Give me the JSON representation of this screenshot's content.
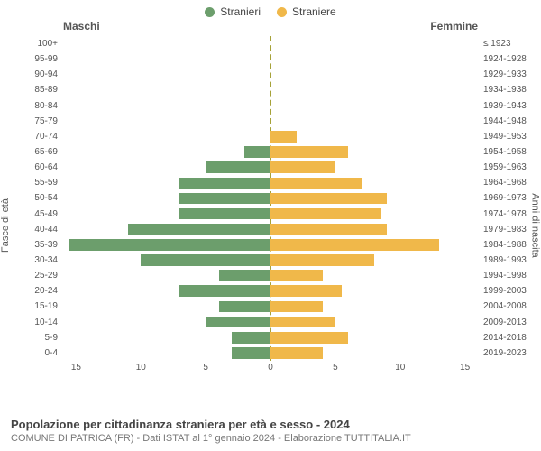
{
  "legend": {
    "male": {
      "label": "Stranieri",
      "color": "#6c9e6c"
    },
    "female": {
      "label": "Straniere",
      "color": "#f0b84a"
    }
  },
  "titles": {
    "left": "Maschi",
    "right": "Femmine"
  },
  "ylabels": {
    "left": "Fasce di età",
    "right": "Anni di nascita"
  },
  "chart": {
    "type": "population-pyramid",
    "background_color": "#ffffff",
    "centerline_color": "#a6a238",
    "xlim": 16,
    "xticks_left": [
      15,
      10,
      5,
      0
    ],
    "xticks_right": [
      5,
      10,
      15
    ],
    "rows": [
      {
        "age": "100+",
        "birth": "≤ 1923",
        "m": 0,
        "f": 0
      },
      {
        "age": "95-99",
        "birth": "1924-1928",
        "m": 0,
        "f": 0
      },
      {
        "age": "90-94",
        "birth": "1929-1933",
        "m": 0,
        "f": 0
      },
      {
        "age": "85-89",
        "birth": "1934-1938",
        "m": 0,
        "f": 0
      },
      {
        "age": "80-84",
        "birth": "1939-1943",
        "m": 0,
        "f": 0
      },
      {
        "age": "75-79",
        "birth": "1944-1948",
        "m": 0,
        "f": 0
      },
      {
        "age": "70-74",
        "birth": "1949-1953",
        "m": 0,
        "f": 2
      },
      {
        "age": "65-69",
        "birth": "1954-1958",
        "m": 2,
        "f": 6
      },
      {
        "age": "60-64",
        "birth": "1959-1963",
        "m": 5,
        "f": 5
      },
      {
        "age": "55-59",
        "birth": "1964-1968",
        "m": 7,
        "f": 7
      },
      {
        "age": "50-54",
        "birth": "1969-1973",
        "m": 7,
        "f": 9
      },
      {
        "age": "45-49",
        "birth": "1974-1978",
        "m": 7,
        "f": 8.5
      },
      {
        "age": "40-44",
        "birth": "1979-1983",
        "m": 11,
        "f": 9
      },
      {
        "age": "35-39",
        "birth": "1984-1988",
        "m": 15.5,
        "f": 13
      },
      {
        "age": "30-34",
        "birth": "1989-1993",
        "m": 10,
        "f": 8
      },
      {
        "age": "25-29",
        "birth": "1994-1998",
        "m": 4,
        "f": 4
      },
      {
        "age": "20-24",
        "birth": "1999-2003",
        "m": 7,
        "f": 5.5
      },
      {
        "age": "15-19",
        "birth": "2004-2008",
        "m": 4,
        "f": 4
      },
      {
        "age": "10-14",
        "birth": "2009-2013",
        "m": 5,
        "f": 5
      },
      {
        "age": "5-9",
        "birth": "2014-2018",
        "m": 3,
        "f": 6
      },
      {
        "age": "0-4",
        "birth": "2019-2023",
        "m": 3,
        "f": 4
      }
    ]
  },
  "caption": {
    "title": "Popolazione per cittadinanza straniera per età e sesso - 2024",
    "subtitle": "COMUNE DI PATRICA (FR) - Dati ISTAT al 1° gennaio 2024 - Elaborazione TUTTITALIA.IT"
  }
}
